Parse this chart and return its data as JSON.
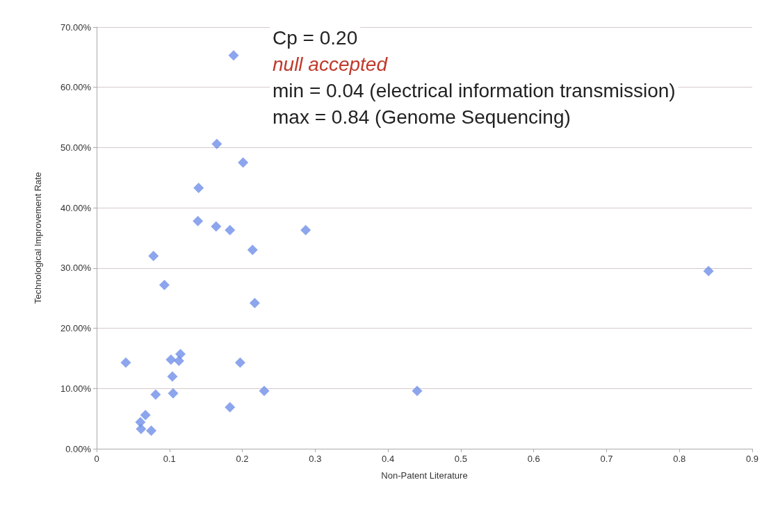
{
  "chart_data": {
    "type": "scatter",
    "xlabel": "Non-Patent Literature",
    "ylabel": "Technological Improvement Rate",
    "annotations": [
      "Cp = 0.20",
      "null accepted",
      "min = 0.04 (electrical information transmission)",
      "max = 0.84 (Genome Sequencing)"
    ],
    "series": [
      {
        "color": "#6f8fe8",
        "x": [
          0.188,
          0.165,
          0.201,
          0.14,
          0.139,
          0.164,
          0.183,
          0.287,
          0.214,
          0.078,
          0.093,
          0.217,
          0.04,
          0.102,
          0.115,
          0.113,
          0.197,
          0.104,
          0.081,
          0.105,
          0.23,
          0.183,
          0.067,
          0.06,
          0.061,
          0.075,
          0.44,
          0.84
        ],
        "values": [
          0.653,
          0.506,
          0.475,
          0.433,
          0.378,
          0.369,
          0.363,
          0.363,
          0.33,
          0.32,
          0.272,
          0.242,
          0.143,
          0.148,
          0.157,
          0.146,
          0.143,
          0.12,
          0.09,
          0.092,
          0.096,
          0.069,
          0.056,
          0.044,
          0.033,
          0.03,
          0.096,
          0.295
        ]
      }
    ],
    "xlim": [
      0,
      0.9
    ],
    "xticks": [
      0,
      0.1,
      0.2,
      0.3,
      0.4,
      0.5,
      0.6,
      0.7,
      0.8,
      0.9
    ],
    "ylim": [
      0,
      0.7
    ],
    "yticks": [
      {
        "value": 0,
        "label": "0.00%"
      },
      {
        "value": 0.1,
        "label": "10.00%"
      },
      {
        "value": 0.2,
        "label": "20.00%"
      },
      {
        "value": 0.3,
        "label": "30.00%"
      },
      {
        "value": 0.4,
        "label": "40.00%"
      },
      {
        "value": 0.5,
        "label": "50.00%"
      },
      {
        "value": 0.6,
        "label": "60.00%"
      },
      {
        "value": 0.7,
        "label": "70.00%"
      }
    ],
    "grid": "y",
    "marker": "diamond"
  }
}
